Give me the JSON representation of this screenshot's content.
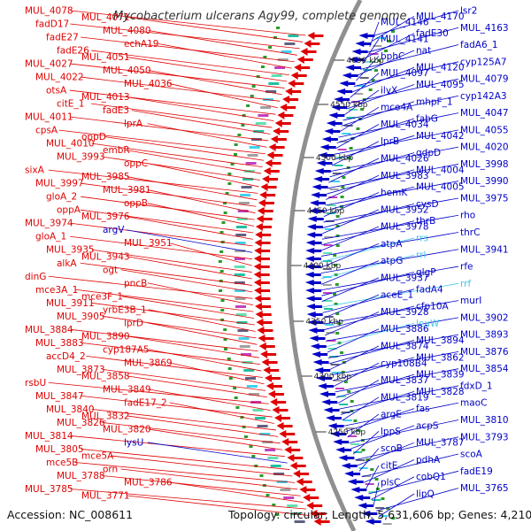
{
  "title": "Mycobacterium ulcerans Agy99, complete genome",
  "footer": {
    "accession": "Accession: NC_008611",
    "topology": "Topology: circular; Length: 5,631,606 bp; Genes: 4,210"
  },
  "colors": {
    "forward": "#e00000",
    "reverse": "#0000c8",
    "rna_forward": "#f0a0c8",
    "rna_reverse": "#40c8e8",
    "backbone": "#909090",
    "gc": "#2a9a2a"
  },
  "ticks": [
    "4600 kbp",
    "4550 kbp",
    "4500 kbp",
    "4450 kbp",
    "4400 kbp",
    "4350 kbp",
    "4300 kbp",
    "4250 kbp"
  ],
  "left_labels": [
    {
      "t": "MUL_4078",
      "c": "f"
    },
    {
      "t": "MUL_4071",
      "c": "f"
    },
    {
      "t": "fadD17",
      "c": "f"
    },
    {
      "t": "MUL_4080",
      "c": "f"
    },
    {
      "t": "fadE27",
      "c": "f"
    },
    {
      "t": "echA19",
      "c": "f"
    },
    {
      "t": "fadE26",
      "c": "f"
    },
    {
      "t": "MUL_4051",
      "c": "f"
    },
    {
      "t": "MUL_4027",
      "c": "f"
    },
    {
      "t": "MUL_4050",
      "c": "f"
    },
    {
      "t": "MUL_4022",
      "c": "f"
    },
    {
      "t": "MUL_4036",
      "c": "f"
    },
    {
      "t": "otsA",
      "c": "f"
    },
    {
      "t": "MUL_4013",
      "c": "f"
    },
    {
      "t": "citE_1",
      "c": "f"
    },
    {
      "t": "fadE3",
      "c": "f"
    },
    {
      "t": "MUL_4011",
      "c": "f"
    },
    {
      "t": "lprA",
      "c": "f"
    },
    {
      "t": "cpsA",
      "c": "f"
    },
    {
      "t": "oppD",
      "c": "f"
    },
    {
      "t": "MUL_4010",
      "c": "f"
    },
    {
      "t": "embR",
      "c": "f"
    },
    {
      "t": "MUL_3993",
      "c": "f"
    },
    {
      "t": "oppC",
      "c": "f"
    },
    {
      "t": "sixA",
      "c": "f"
    },
    {
      "t": "MUL_3985",
      "c": "f"
    },
    {
      "t": "MUL_3997",
      "c": "f"
    },
    {
      "t": "MUL_3981",
      "c": "f"
    },
    {
      "t": "gloA_2",
      "c": "f"
    },
    {
      "t": "oppB",
      "c": "f"
    },
    {
      "t": "oppA",
      "c": "f"
    },
    {
      "t": "MUL_3976",
      "c": "f"
    },
    {
      "t": "MUL_3974",
      "c": "f"
    },
    {
      "t": "argV",
      "c": "r"
    },
    {
      "t": "gloA_1",
      "c": "f"
    },
    {
      "t": "MUL_3951",
      "c": "f"
    },
    {
      "t": "MUL_3935",
      "c": "f"
    },
    {
      "t": "MUL_3943",
      "c": "f"
    },
    {
      "t": "alkA",
      "c": "f"
    },
    {
      "t": "ogt",
      "c": "f"
    },
    {
      "t": "dinG",
      "c": "f"
    },
    {
      "t": "pncB",
      "c": "f"
    },
    {
      "t": "mce3A_1",
      "c": "f"
    },
    {
      "t": "mce3F_1",
      "c": "f"
    },
    {
      "t": "MUL_3911",
      "c": "f"
    },
    {
      "t": "yrbE3B_1",
      "c": "f"
    },
    {
      "t": "MUL_3905",
      "c": "f"
    },
    {
      "t": "lprD",
      "c": "f"
    },
    {
      "t": "MUL_3884",
      "c": "f"
    },
    {
      "t": "MUL_3890",
      "c": "f"
    },
    {
      "t": "MUL_3883",
      "c": "f"
    },
    {
      "t": "cyp187A5",
      "c": "f"
    },
    {
      "t": "accD4_2",
      "c": "f"
    },
    {
      "t": "MUL_3869",
      "c": "f"
    },
    {
      "t": "MUL_3873",
      "c": "f"
    },
    {
      "t": "MUL_3858",
      "c": "f"
    },
    {
      "t": "rsbU",
      "c": "f"
    },
    {
      "t": "MUL_3849",
      "c": "f"
    },
    {
      "t": "MUL_3847",
      "c": "f"
    },
    {
      "t": "fadE17_2",
      "c": "f"
    },
    {
      "t": "MUL_3840",
      "c": "f"
    },
    {
      "t": "MUL_3832",
      "c": "f"
    },
    {
      "t": "MUL_3826",
      "c": "f"
    },
    {
      "t": "MUL_3820",
      "c": "f"
    },
    {
      "t": "MUL_3814",
      "c": "f"
    },
    {
      "t": "lysU",
      "c": "r"
    },
    {
      "t": "MUL_3805",
      "c": "f"
    },
    {
      "t": "mce5A",
      "c": "f"
    },
    {
      "t": "mce5B",
      "c": "f"
    },
    {
      "t": "orn",
      "c": "f"
    },
    {
      "t": "MUL_3788",
      "c": "f"
    },
    {
      "t": "MUL_3786",
      "c": "f"
    },
    {
      "t": "MUL_3785",
      "c": "f"
    },
    {
      "t": "MUL_3771",
      "c": "f"
    }
  ],
  "right_labels": [
    {
      "t": "lsr2",
      "c": "r"
    },
    {
      "t": "MUL_4170",
      "c": "r"
    },
    {
      "t": "MUL_4146",
      "c": "r"
    },
    {
      "t": "MUL_4163",
      "c": "r"
    },
    {
      "t": "fadE30",
      "c": "r"
    },
    {
      "t": "MUL_4141",
      "c": "r"
    },
    {
      "t": "fadA6_1",
      "c": "r"
    },
    {
      "t": "nat",
      "c": "r"
    },
    {
      "t": "bphC",
      "c": "r"
    },
    {
      "t": "cyp125A7",
      "c": "r"
    },
    {
      "t": "MUL_4120",
      "c": "r"
    },
    {
      "t": "MUL_4097",
      "c": "r"
    },
    {
      "t": "MUL_4079",
      "c": "r"
    },
    {
      "t": "MUL_4095",
      "c": "r"
    },
    {
      "t": "ilvX",
      "c": "r"
    },
    {
      "t": "cyp142A3",
      "c": "r"
    },
    {
      "t": "mhpF_1",
      "c": "r"
    },
    {
      "t": "mce4A",
      "c": "r"
    },
    {
      "t": "MUL_4047",
      "c": "r"
    },
    {
      "t": "fabG",
      "c": "r"
    },
    {
      "t": "MUL_4034",
      "c": "r"
    },
    {
      "t": "MUL_4055",
      "c": "r"
    },
    {
      "t": "MUL_4042",
      "c": "r"
    },
    {
      "t": "lprB",
      "c": "r"
    },
    {
      "t": "MUL_4020",
      "c": "r"
    },
    {
      "t": "gdpD",
      "c": "r"
    },
    {
      "t": "MUL_4026",
      "c": "r"
    },
    {
      "t": "MUL_3998",
      "c": "r"
    },
    {
      "t": "MUL_4004",
      "c": "r"
    },
    {
      "t": "MUL_3983",
      "c": "r"
    },
    {
      "t": "MUL_3990",
      "c": "r"
    },
    {
      "t": "MUL_4005",
      "c": "r"
    },
    {
      "t": "hemK",
      "c": "r"
    },
    {
      "t": "MUL_3975",
      "c": "r"
    },
    {
      "t": "cysD",
      "c": "r"
    },
    {
      "t": "MUL_3952",
      "c": "r"
    },
    {
      "t": "rho",
      "c": "r"
    },
    {
      "t": "thrB",
      "c": "r"
    },
    {
      "t": "MUL_3978",
      "c": "r"
    },
    {
      "t": "thrC",
      "c": "r"
    },
    {
      "t": "rrs",
      "c": "n"
    },
    {
      "t": "atpA",
      "c": "r"
    },
    {
      "t": "MUL_3941",
      "c": "r"
    },
    {
      "t": "rrl",
      "c": "n"
    },
    {
      "t": "atpG",
      "c": "r"
    },
    {
      "t": "rfe",
      "c": "r"
    },
    {
      "t": "glgP",
      "c": "r"
    },
    {
      "t": "MUL_3937",
      "c": "r"
    },
    {
      "t": "rrf",
      "c": "n"
    },
    {
      "t": "fadA4",
      "c": "r"
    },
    {
      "t": "aceE_1",
      "c": "r"
    },
    {
      "t": "murI",
      "c": "r"
    },
    {
      "t": "cfp10A",
      "c": "r"
    },
    {
      "t": "MUL_3928",
      "c": "r"
    },
    {
      "t": "MUL_3902",
      "c": "r"
    },
    {
      "t": "leuW",
      "c": "n"
    },
    {
      "t": "MUL_3886",
      "c": "r"
    },
    {
      "t": "MUL_3893",
      "c": "r"
    },
    {
      "t": "MUL_3894",
      "c": "r"
    },
    {
      "t": "MUL_3874",
      "c": "r"
    },
    {
      "t": "MUL_3876",
      "c": "r"
    },
    {
      "t": "MUL_3862",
      "c": "r"
    },
    {
      "t": "cyp108B4",
      "c": "r"
    },
    {
      "t": "MUL_3854",
      "c": "r"
    },
    {
      "t": "MUL_3839",
      "c": "r"
    },
    {
      "t": "MUL_3837",
      "c": "r"
    },
    {
      "t": "fdxD_1",
      "c": "r"
    },
    {
      "t": "MUL_3828",
      "c": "r"
    },
    {
      "t": "MUL_3819",
      "c": "r"
    },
    {
      "t": "maoC",
      "c": "r"
    },
    {
      "t": "fas",
      "c": "r"
    },
    {
      "t": "argE",
      "c": "r"
    },
    {
      "t": "MUL_3810",
      "c": "r"
    },
    {
      "t": "acpS",
      "c": "r"
    },
    {
      "t": "lppS",
      "c": "r"
    },
    {
      "t": "MUL_3793",
      "c": "r"
    },
    {
      "t": "MUL_3787",
      "c": "r"
    },
    {
      "t": "scoB",
      "c": "r"
    },
    {
      "t": "scoA",
      "c": "r"
    },
    {
      "t": "pdhA",
      "c": "r"
    },
    {
      "t": "citE",
      "c": "r"
    },
    {
      "t": "fadE19",
      "c": "r"
    },
    {
      "t": "cobQ1",
      "c": "r"
    },
    {
      "t": "plsC",
      "c": "r"
    },
    {
      "t": "MUL_3765",
      "c": "r"
    },
    {
      "t": "lipQ",
      "c": "r"
    }
  ]
}
